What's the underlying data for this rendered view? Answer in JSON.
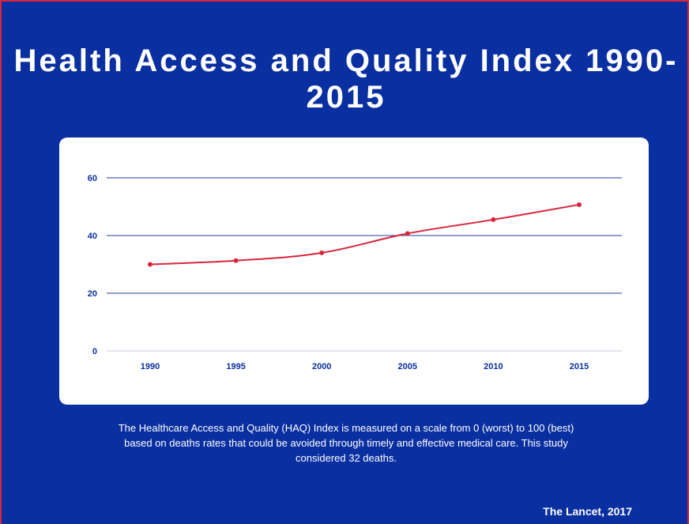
{
  "title": "Health Access and Quality Index 1990-2015",
  "caption": "The Healthcare Access and Quality (HAQ) Index is measured on a scale from 0 (worst) to 100 (best) based on deaths rates that could be avoided through timely and effective medical care. This study considered 32 deaths.",
  "source": "The Lancet, 2017",
  "colors": {
    "background": "#0a2fa0",
    "line": "#d7263d",
    "grid": "#1f3aa8",
    "axis_text": "#0a2fa0"
  },
  "chart_data": {
    "type": "line",
    "x": [
      "1990",
      "1995",
      "2000",
      "2005",
      "2010",
      "2015"
    ],
    "series": [
      {
        "values": [
          30,
          31.3,
          34,
          40.7,
          45.5,
          50.7
        ]
      }
    ],
    "yticks": [
      0,
      20,
      40,
      60
    ],
    "ylim": [
      0,
      60
    ],
    "grid": true,
    "legend": "none",
    "xlabel": "",
    "ylabel": ""
  }
}
